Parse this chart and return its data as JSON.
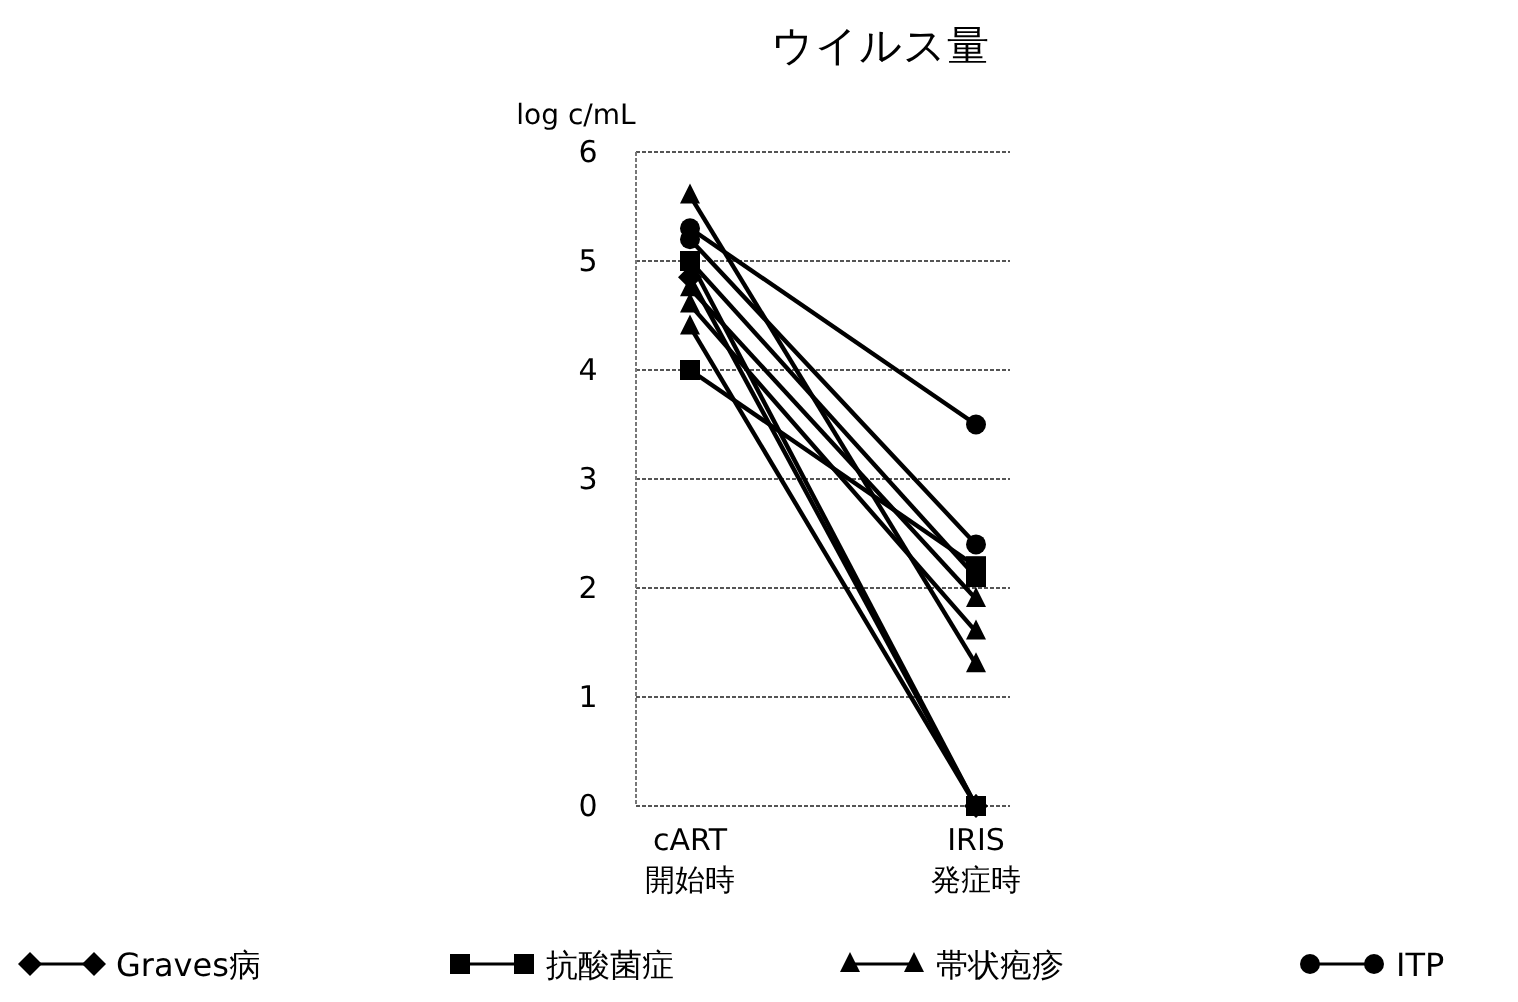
{
  "chart_data": {
    "type": "line",
    "title": "ウイルス量",
    "ylabel": "log c/mL",
    "categories": [
      "cART\n開始時",
      "IRIS\n発症時"
    ],
    "ylim": [
      0,
      6
    ],
    "yticks": [
      0,
      1,
      2,
      3,
      4,
      5,
      6
    ],
    "grid": "y",
    "legend": "bottom",
    "line_style": "solid",
    "series": [
      {
        "name": "Graves病",
        "color": "#000000",
        "marker": "diamond",
        "values": [
          4.85,
          0
        ]
      },
      {
        "name": "抗酸菌症",
        "color": "#000000",
        "marker": "square",
        "values": [
          4.0,
          2.2
        ]
      },
      {
        "color": "#000000",
        "marker": "square",
        "values": [
          5.0,
          2.1
        ]
      },
      {
        "color": "#000000",
        "marker": "square",
        "values": [
          5.0,
          0
        ]
      },
      {
        "name": "帯状疱疹",
        "color": "#000000",
        "marker": "triangle",
        "values": [
          5.6,
          1.3
        ]
      },
      {
        "color": "#000000",
        "marker": "triangle",
        "values": [
          4.75,
          1.9
        ]
      },
      {
        "color": "#000000",
        "marker": "triangle",
        "values": [
          4.6,
          1.6
        ]
      },
      {
        "color": "#000000",
        "marker": "triangle",
        "values": [
          4.4,
          0
        ]
      },
      {
        "name": "ITP",
        "color": "#000000",
        "marker": "circle",
        "values": [
          5.3,
          3.5
        ]
      },
      {
        "color": "#000000",
        "marker": "circle",
        "values": [
          5.2,
          2.4
        ]
      }
    ]
  }
}
